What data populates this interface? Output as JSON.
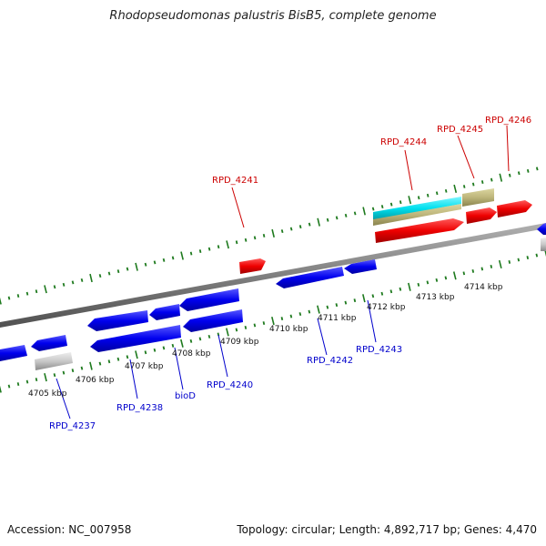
{
  "title": "Rhodopseudomonas palustris BisB5, complete genome",
  "accession": "Accession: NC_007958",
  "summary": "Topology: circular; Length: 4,892,717 bp; Genes: 4,470",
  "colors": {
    "forward_gene": "#ee0000",
    "reverse_gene": "#0000ee",
    "label_forward": "#cc0000",
    "label_reverse": "#0000cc",
    "tick": "#1e7a1e",
    "backbone": "#808080",
    "pseudo_gene": "#c8c8c8",
    "rna_gene": "#bdb57a",
    "highlight_gene": "#00e0ee"
  },
  "scale_labels": [
    "4705 kbp",
    "4706 kbp",
    "4707 kbp",
    "4708 kbp",
    "4709 kbp",
    "4710 kbp",
    "4711 kbp",
    "4712 kbp",
    "4713 kbp",
    "4714 kbp"
  ],
  "gene_labels_forward": [
    "RPD_4241",
    "RPD_4244",
    "RPD_4245",
    "RPD_4246"
  ],
  "gene_labels_reverse": [
    "RPD_4237",
    "RPD_4238",
    "bioD",
    "RPD_4240",
    "RPD_4242",
    "RPD_4243"
  ]
}
